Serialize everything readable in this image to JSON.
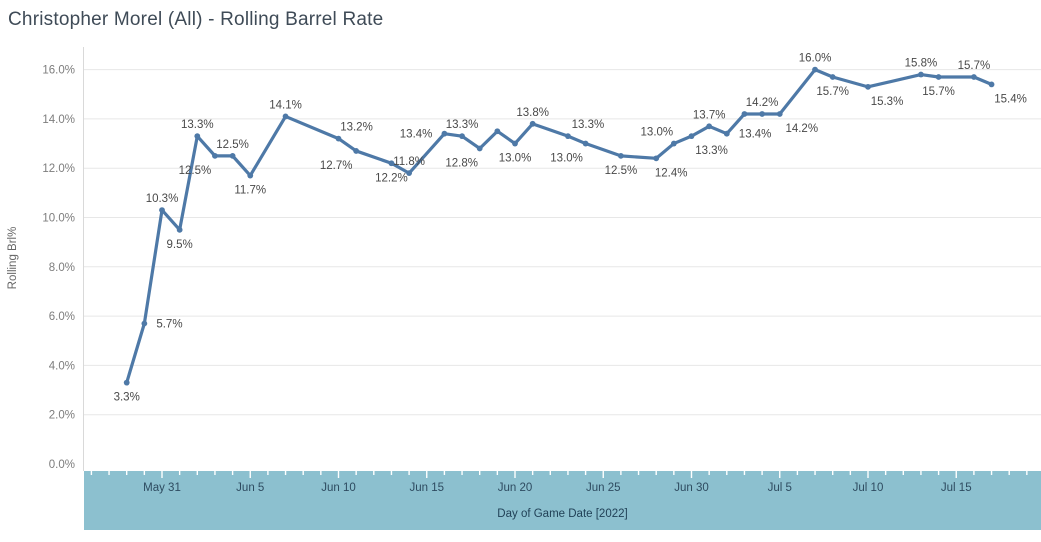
{
  "title": "Christopher Morel (All) - Rolling Barrel Rate",
  "colors": {
    "line": "#4e79a7",
    "marker": "#4e79a7",
    "band": "#8cc0cf",
    "grid": "#e7e7e7",
    "axis_line": "#d9d9d9",
    "tick_white": "#ffffff",
    "data_label": "#494949",
    "y_tick_text": "#7d7d7d",
    "x_tick_text": "#2e4b60",
    "x_axis_title_text": "#1f3f55",
    "y_axis_title_text": "#666666",
    "title_text": "#3f4b57"
  },
  "chart_data": {
    "type": "line",
    "title": "Christopher Morel (All) - Rolling Barrel Rate",
    "xlabel": "Day of Game Date [2022]",
    "ylabel": "Rolling Brl%",
    "ylim": [
      0,
      16
    ],
    "y_tick_step": 2,
    "y_tick_labels": [
      "0.0%",
      "2.0%",
      "4.0%",
      "6.0%",
      "8.0%",
      "10.0%",
      "12.0%",
      "14.0%",
      "16.0%"
    ],
    "grid": "horizontal-light",
    "legend": "none",
    "x_axis": {
      "unit": "day",
      "day_zero_date": "May 29",
      "first_tick_day": -2,
      "last_tick_day": 51,
      "major_ticks": [
        {
          "label": "May 31",
          "day": 2
        },
        {
          "label": "Jun 5",
          "day": 7
        },
        {
          "label": "Jun 10",
          "day": 12
        },
        {
          "label": "Jun 15",
          "day": 17
        },
        {
          "label": "Jun 20",
          "day": 22
        },
        {
          "label": "Jun 25",
          "day": 27
        },
        {
          "label": "Jun 30",
          "day": 32
        },
        {
          "label": "Jul 5",
          "day": 37
        },
        {
          "label": "Jul 10",
          "day": 42
        },
        {
          "label": "Jul 15",
          "day": 47
        }
      ]
    },
    "series": [
      {
        "name": "Rolling Brl%",
        "points": [
          {
            "date": "May 29",
            "day": 0,
            "value": 3.3,
            "label": "3.3%",
            "pos": "below",
            "dx": 0
          },
          {
            "date": "May 30",
            "day": 1,
            "value": 5.7,
            "label": "5.7%",
            "pos": "right",
            "dx": 0
          },
          {
            "date": "May 31",
            "day": 2,
            "value": 10.3,
            "label": "10.3%",
            "pos": "above",
            "dx": 0
          },
          {
            "date": "Jun 1",
            "day": 3,
            "value": 9.5,
            "label": "9.5%",
            "pos": "below",
            "dx": 0
          },
          {
            "date": "Jun 2",
            "day": 4,
            "value": 13.3,
            "label": "13.3%",
            "pos": "above",
            "dx": 0
          },
          {
            "date": "Jun 3",
            "day": 5,
            "value": 12.5,
            "label": "12.5%",
            "pos": "below",
            "dx": -20
          },
          {
            "date": "Jun 4",
            "day": 6,
            "value": 12.5,
            "label": "12.5%",
            "pos": "above",
            "dx": 0
          },
          {
            "date": "Jun 5",
            "day": 7,
            "value": 11.7,
            "label": "11.7%",
            "pos": "below",
            "dx": 0
          },
          {
            "date": "Jun 7",
            "day": 9,
            "value": 14.1,
            "label": "14.1%",
            "pos": "above",
            "dx": 0
          },
          {
            "date": "Jun 10",
            "day": 12,
            "value": 13.2,
            "label": "13.2%",
            "pos": "above",
            "dx": 18
          },
          {
            "date": "Jun 11",
            "day": 13,
            "value": 12.7,
            "label": "12.7%",
            "pos": "below",
            "dx": -20
          },
          {
            "date": "Jun 13",
            "day": 15,
            "value": 12.2,
            "label": "12.2%",
            "pos": "below",
            "dx": 0
          },
          {
            "date": "Jun 14",
            "day": 16,
            "value": 11.8,
            "label": "11.8%",
            "pos": "above",
            "dx": 0
          },
          {
            "date": "Jun 16",
            "day": 18,
            "value": 13.4,
            "label": "13.4%",
            "pos": "left",
            "dx": 0
          },
          {
            "date": "Jun 17",
            "day": 19,
            "value": 13.3,
            "label": "13.3%",
            "pos": "above",
            "dx": 0
          },
          {
            "date": "Jun 18",
            "day": 20,
            "value": 12.8,
            "label": "12.8%",
            "pos": "below",
            "dx": -18
          },
          {
            "date": "Jun 19",
            "day": 21,
            "value": 13.5,
            "label": "",
            "pos": "above",
            "dx": 0
          },
          {
            "date": "Jun 20",
            "day": 22,
            "value": 13.0,
            "label": "13.0%",
            "pos": "below",
            "dx": 0
          },
          {
            "date": "Jun 21",
            "day": 23,
            "value": 13.8,
            "label": "13.8%",
            "pos": "above",
            "dx": 0
          },
          {
            "date": "Jun 23",
            "day": 25,
            "value": 13.3,
            "label": "13.3%",
            "pos": "above",
            "dx": 20
          },
          {
            "date": "Jun 24",
            "day": 26,
            "value": 13.0,
            "label": "13.0%",
            "pos": "below",
            "dx": -19
          },
          {
            "date": "Jun 26",
            "day": 28,
            "value": 12.5,
            "label": "12.5%",
            "pos": "below",
            "dx": 0
          },
          {
            "date": "Jun 28",
            "day": 30,
            "value": 12.4,
            "label": "12.4%",
            "pos": "below",
            "dx": 15
          },
          {
            "date": "Jun 29",
            "day": 31,
            "value": 13.0,
            "label": "13.0%",
            "pos": "above",
            "dx": -17
          },
          {
            "date": "Jun 30",
            "day": 32,
            "value": 13.3,
            "label": "13.3%",
            "pos": "below",
            "dx": 20
          },
          {
            "date": "Jul 1",
            "day": 33,
            "value": 13.7,
            "label": "13.7%",
            "pos": "above",
            "dx": 0
          },
          {
            "date": "Jul 2",
            "day": 34,
            "value": 13.4,
            "label": "13.4%",
            "pos": "right",
            "dx": 0
          },
          {
            "date": "Jul 3",
            "day": 35,
            "value": 14.2,
            "label": "",
            "pos": "above",
            "dx": 0
          },
          {
            "date": "Jul 4",
            "day": 36,
            "value": 14.2,
            "label": "14.2%",
            "pos": "above",
            "dx": 0
          },
          {
            "date": "Jul 5",
            "day": 37,
            "value": 14.2,
            "label": "14.2%",
            "pos": "below",
            "dx": 22
          },
          {
            "date": "Jul 7",
            "day": 39,
            "value": 16.0,
            "label": "16.0%",
            "pos": "above",
            "dx": 0
          },
          {
            "date": "Jul 8",
            "day": 40,
            "value": 15.7,
            "label": "15.7%",
            "pos": "below",
            "dx": 0
          },
          {
            "date": "Jul 10",
            "day": 42,
            "value": 15.3,
            "label": "15.3%",
            "pos": "below",
            "dx": 19
          },
          {
            "date": "Jul 13",
            "day": 45,
            "value": 15.8,
            "label": "15.8%",
            "pos": "above",
            "dx": 0
          },
          {
            "date": "Jul 14",
            "day": 46,
            "value": 15.7,
            "label": "15.7%",
            "pos": "below",
            "dx": 0
          },
          {
            "date": "Jul 16",
            "day": 48,
            "value": 15.7,
            "label": "15.7%",
            "pos": "above",
            "dx": 0
          },
          {
            "date": "Jul 17",
            "day": 49,
            "value": 15.4,
            "label": "15.4%",
            "pos": "below",
            "dx": 19
          }
        ]
      }
    ]
  }
}
